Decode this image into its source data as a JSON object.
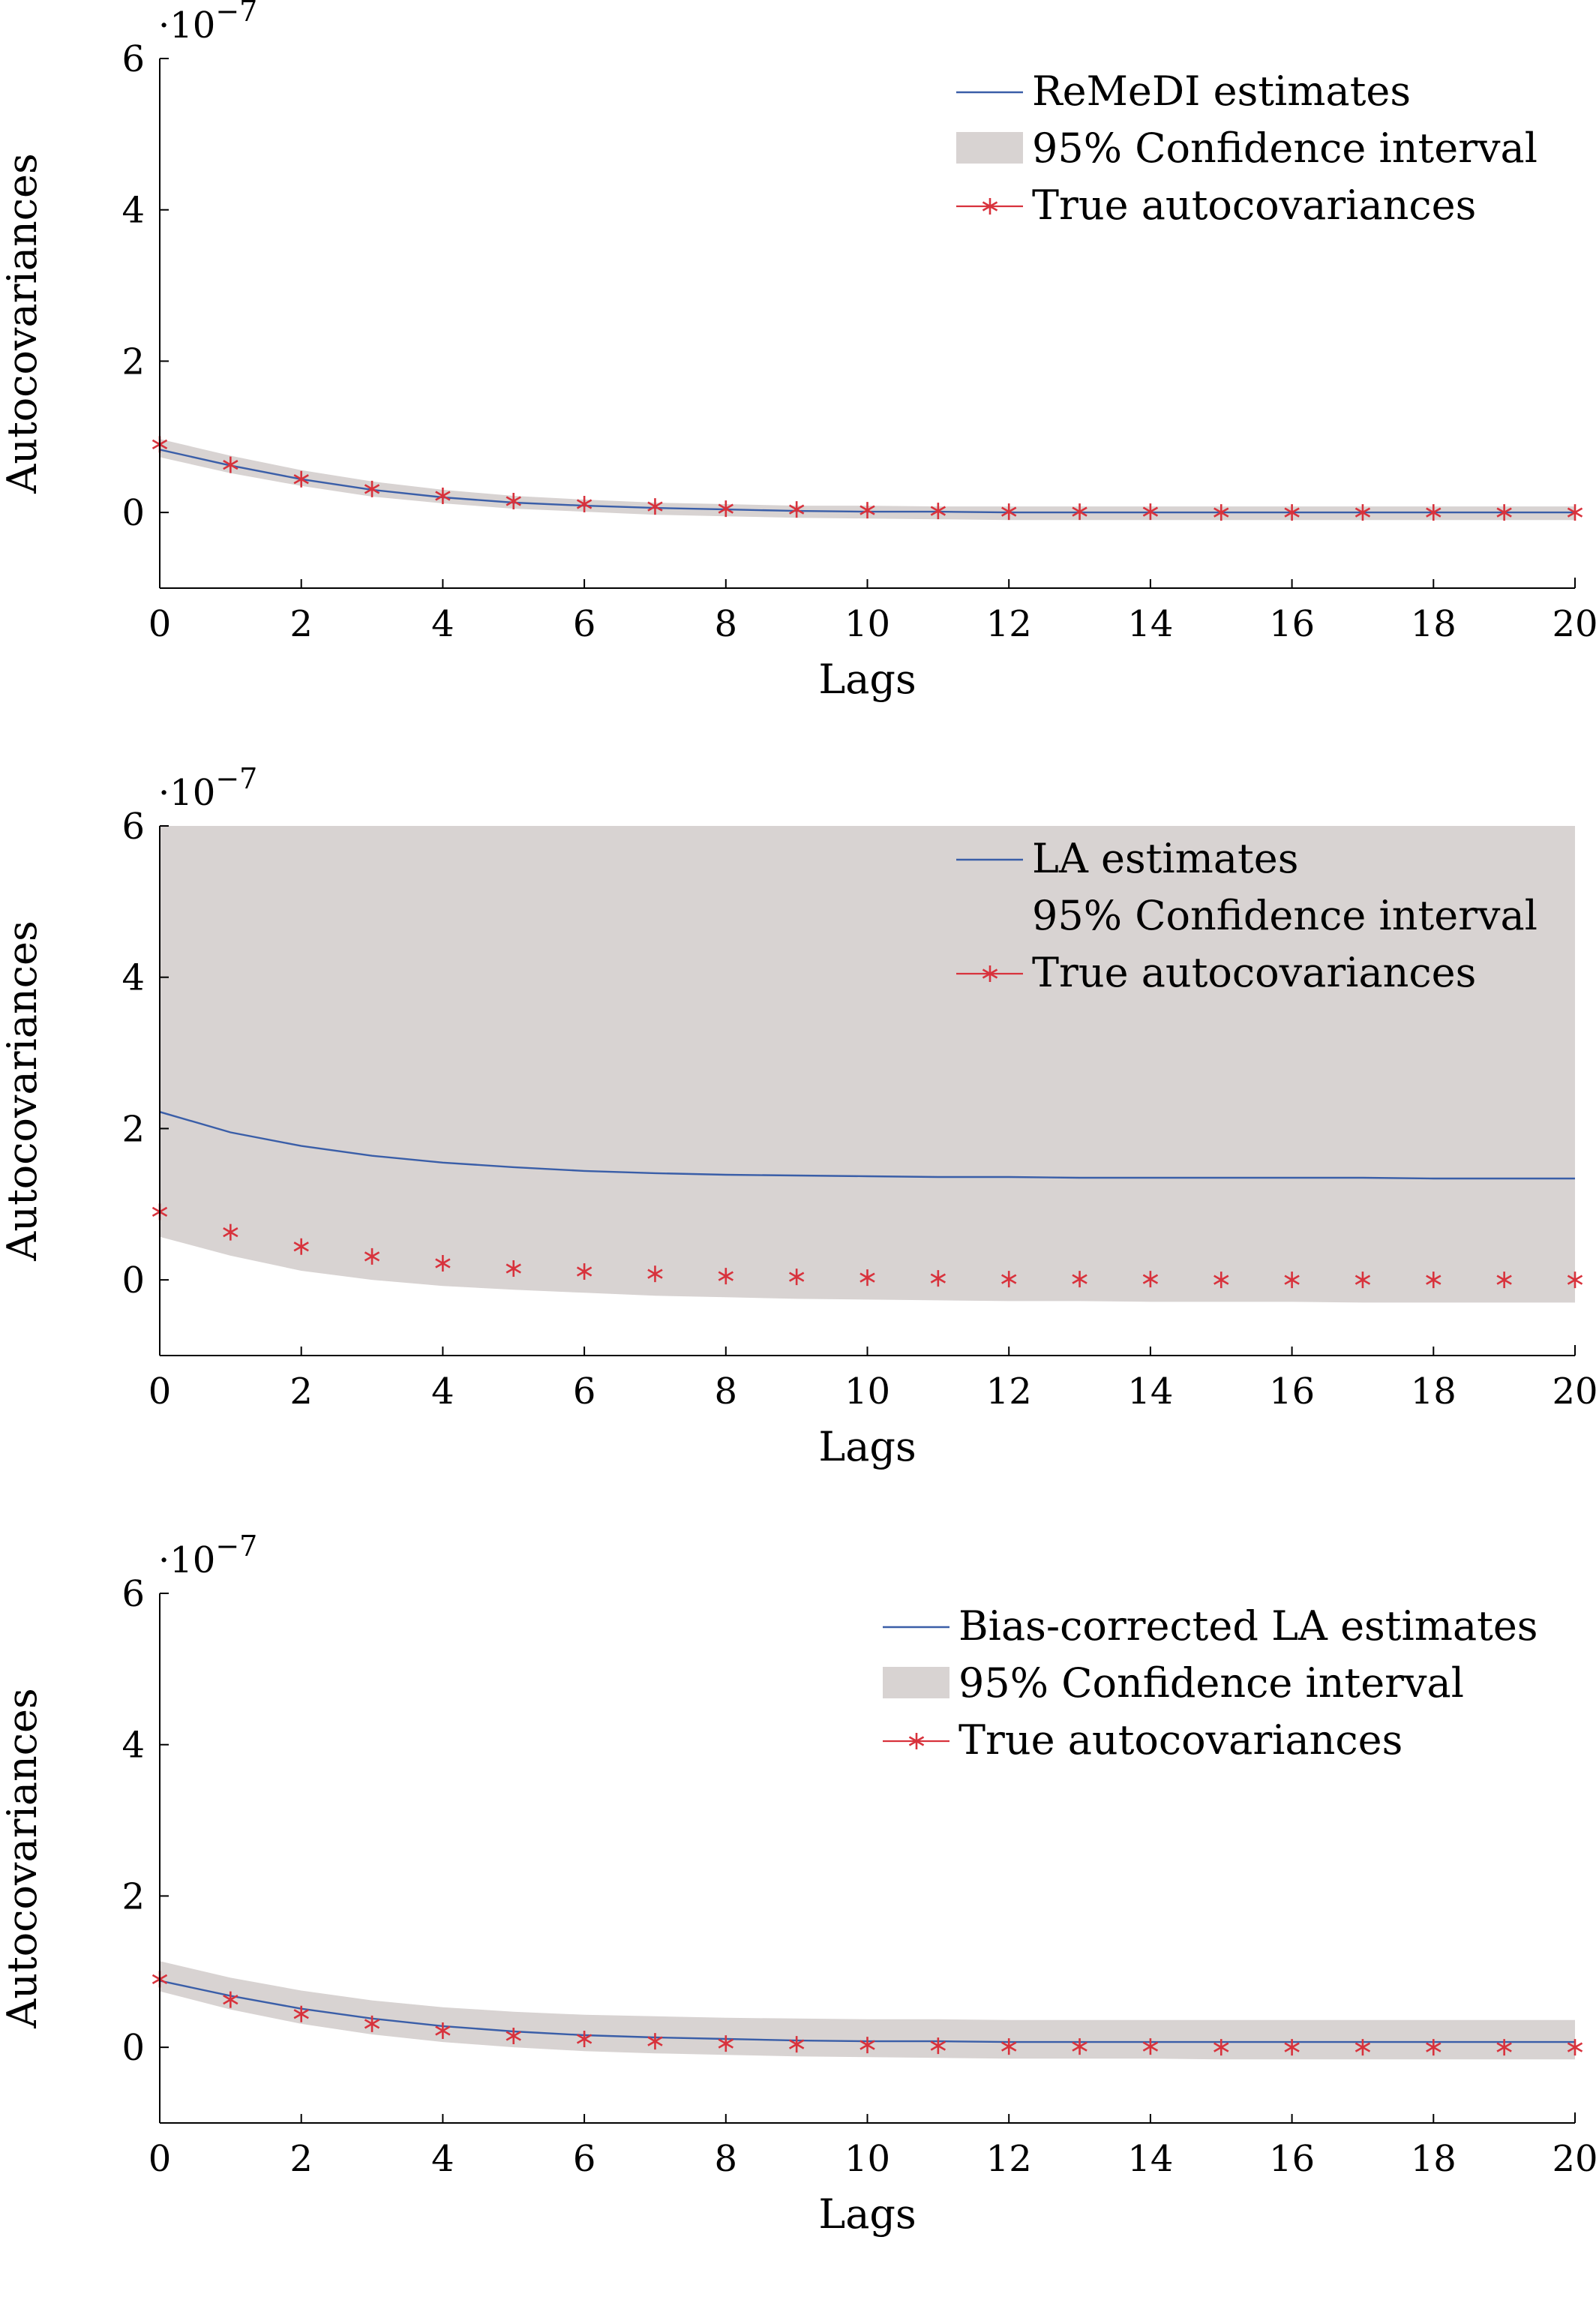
{
  "colors": {
    "estimate": "#3a5ea8",
    "band": "#d8d3d2",
    "truth": "#d8323c",
    "axis": "#000000"
  },
  "chart_data": [
    {
      "type": "line",
      "xlabel": "Lags",
      "ylabel": "Autocovariances",
      "scale_label_base": "·10",
      "scale_label_exp": "−7",
      "xlim": [
        0,
        20
      ],
      "ylim": [
        -1,
        6
      ],
      "xticks": [
        0,
        2,
        4,
        6,
        8,
        10,
        12,
        14,
        16,
        18,
        20
      ],
      "yticks": [
        0,
        2,
        4,
        6
      ],
      "legend_position": "top-right",
      "legend": [
        "ReMeDI estimates",
        "95% Confidence interval",
        "True autocovariances"
      ],
      "x": [
        0,
        1,
        2,
        3,
        4,
        5,
        6,
        7,
        8,
        9,
        10,
        11,
        12,
        13,
        14,
        15,
        16,
        17,
        18,
        19,
        20
      ],
      "series": [
        {
          "name": "ReMeDI estimates",
          "role": "estimate",
          "values": [
            0.83,
            0.62,
            0.44,
            0.3,
            0.2,
            0.13,
            0.09,
            0.06,
            0.04,
            0.02,
            0.01,
            0.01,
            0.0,
            0.0,
            0.0,
            0.0,
            0.0,
            0.0,
            0.0,
            0.0,
            0.0
          ]
        },
        {
          "name": "95% Confidence interval",
          "role": "band",
          "lower": [
            0.73,
            0.52,
            0.35,
            0.21,
            0.12,
            0.05,
            0.01,
            -0.03,
            -0.05,
            -0.07,
            -0.08,
            -0.09,
            -0.1,
            -0.1,
            -0.1,
            -0.1,
            -0.1,
            -0.1,
            -0.1,
            -0.1,
            -0.1
          ],
          "upper": [
            0.97,
            0.75,
            0.56,
            0.41,
            0.3,
            0.22,
            0.17,
            0.13,
            0.11,
            0.09,
            0.09,
            0.08,
            0.08,
            0.08,
            0.08,
            0.08,
            0.08,
            0.08,
            0.08,
            0.08,
            0.08
          ]
        },
        {
          "name": "True autocovariances",
          "role": "truth",
          "values": [
            0.9,
            0.63,
            0.44,
            0.31,
            0.22,
            0.15,
            0.11,
            0.08,
            0.05,
            0.04,
            0.03,
            0.02,
            0.01,
            0.01,
            0.01,
            0.0,
            0.0,
            0.0,
            0.0,
            0.0,
            0.0
          ]
        }
      ]
    },
    {
      "type": "line",
      "xlabel": "Lags",
      "ylabel": "Autocovariances",
      "scale_label_base": "·10",
      "scale_label_exp": "−7",
      "xlim": [
        0,
        20
      ],
      "ylim": [
        -1,
        6
      ],
      "xticks": [
        0,
        2,
        4,
        6,
        8,
        10,
        12,
        14,
        16,
        18,
        20
      ],
      "yticks": [
        0,
        2,
        4,
        6
      ],
      "legend_position": "top-right",
      "legend": [
        "LA estimates",
        "95% Confidence interval",
        "True autocovariances"
      ],
      "x": [
        0,
        1,
        2,
        3,
        4,
        5,
        6,
        7,
        8,
        9,
        10,
        11,
        12,
        13,
        14,
        15,
        16,
        17,
        18,
        19,
        20
      ],
      "series": [
        {
          "name": "LA estimates",
          "role": "estimate",
          "values": [
            2.22,
            1.95,
            1.77,
            1.64,
            1.55,
            1.49,
            1.44,
            1.41,
            1.39,
            1.38,
            1.37,
            1.36,
            1.36,
            1.35,
            1.35,
            1.35,
            1.35,
            1.35,
            1.34,
            1.34,
            1.34
          ]
        },
        {
          "name": "95% Confidence interval",
          "role": "band",
          "lower": [
            0.57,
            0.32,
            0.12,
            0.0,
            -0.08,
            -0.13,
            -0.17,
            -0.21,
            -0.23,
            -0.25,
            -0.26,
            -0.27,
            -0.28,
            -0.28,
            -0.29,
            -0.29,
            -0.29,
            -0.3,
            -0.3,
            -0.3,
            -0.3
          ]
        },
        {
          "name": "True autocovariances",
          "role": "truth",
          "values": [
            0.9,
            0.63,
            0.44,
            0.31,
            0.22,
            0.15,
            0.11,
            0.08,
            0.05,
            0.04,
            0.03,
            0.02,
            0.01,
            0.01,
            0.01,
            0.0,
            0.0,
            0.0,
            0.0,
            0.0,
            0.0
          ]
        }
      ]
    },
    {
      "type": "line",
      "xlabel": "Lags",
      "ylabel": "Autocovariances",
      "scale_label_base": "·10",
      "scale_label_exp": "−7",
      "xlim": [
        0,
        20
      ],
      "ylim": [
        -1,
        6
      ],
      "xticks": [
        0,
        2,
        4,
        6,
        8,
        10,
        12,
        14,
        16,
        18,
        20
      ],
      "yticks": [
        0,
        2,
        4,
        6
      ],
      "legend_position": "top-right",
      "legend": [
        "Bias-corrected LA estimates",
        "95% Confidence interval",
        "True autocovariances"
      ],
      "x": [
        0,
        1,
        2,
        3,
        4,
        5,
        6,
        7,
        8,
        9,
        10,
        11,
        12,
        13,
        14,
        15,
        16,
        17,
        18,
        19,
        20
      ],
      "series": [
        {
          "name": "Bias-corrected LA estimates",
          "role": "estimate",
          "values": [
            0.88,
            0.68,
            0.51,
            0.38,
            0.28,
            0.21,
            0.16,
            0.13,
            0.11,
            0.09,
            0.08,
            0.08,
            0.07,
            0.07,
            0.07,
            0.07,
            0.07,
            0.07,
            0.07,
            0.07,
            0.07
          ]
        },
        {
          "name": "95% Confidence interval",
          "role": "band",
          "lower": [
            0.74,
            0.5,
            0.31,
            0.17,
            0.07,
            0.0,
            -0.05,
            -0.08,
            -0.1,
            -0.12,
            -0.13,
            -0.14,
            -0.15,
            -0.15,
            -0.15,
            -0.16,
            -0.16,
            -0.16,
            -0.16,
            -0.16,
            -0.16
          ],
          "upper": [
            1.14,
            0.92,
            0.75,
            0.62,
            0.53,
            0.47,
            0.43,
            0.41,
            0.39,
            0.38,
            0.37,
            0.37,
            0.36,
            0.36,
            0.36,
            0.36,
            0.36,
            0.36,
            0.36,
            0.36,
            0.36
          ]
        },
        {
          "name": "True autocovariances",
          "role": "truth",
          "values": [
            0.9,
            0.63,
            0.44,
            0.31,
            0.22,
            0.15,
            0.11,
            0.08,
            0.05,
            0.04,
            0.03,
            0.02,
            0.01,
            0.01,
            0.01,
            0.0,
            0.0,
            0.0,
            0.0,
            0.0,
            0.0
          ]
        }
      ]
    }
  ]
}
